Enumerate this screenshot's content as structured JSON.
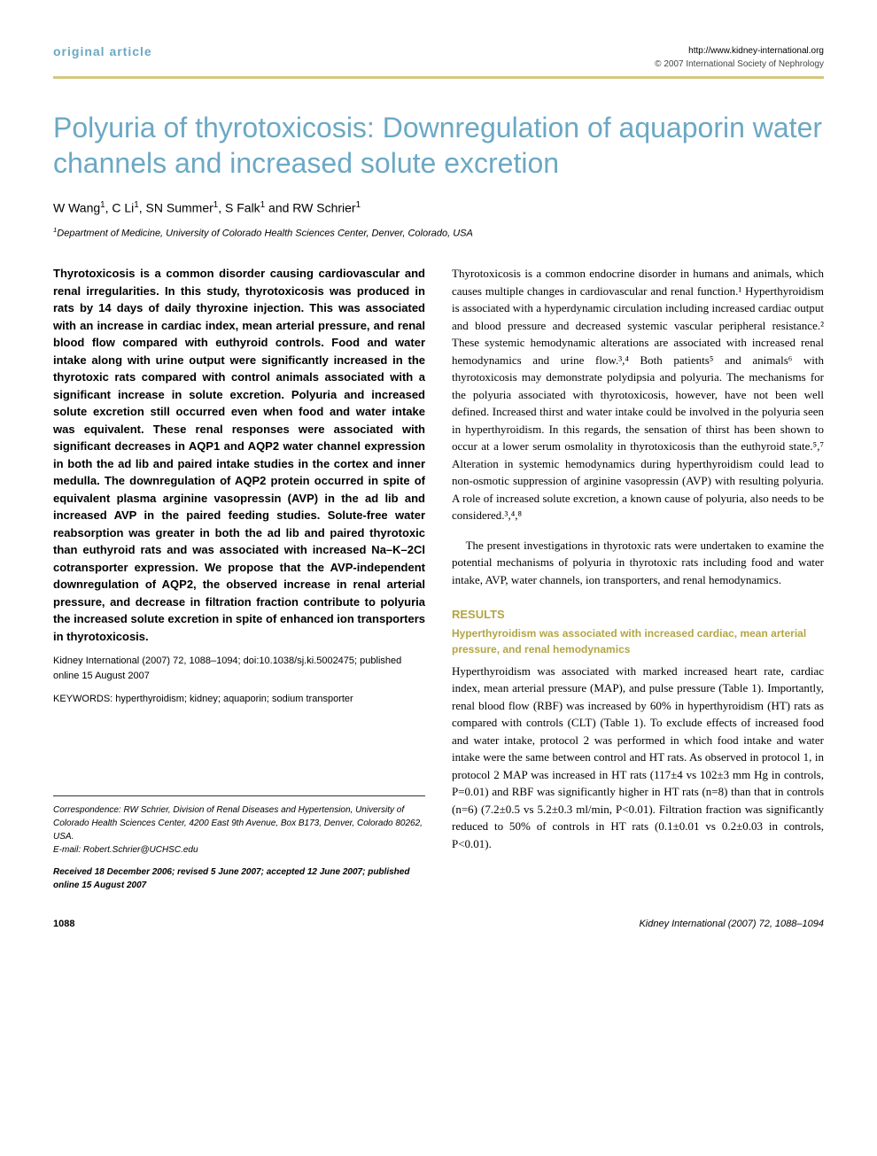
{
  "header": {
    "article_type": "original article",
    "url": "http://www.kidney-international.org",
    "copyright": "© 2007 International Society of Nephrology"
  },
  "title": "Polyuria of thyrotoxicosis: Downregulation of aquaporin water channels and increased solute excretion",
  "authors_html": "W Wang<span class='sup'>1</span>, C Li<span class='sup'>1</span>, SN Summer<span class='sup'>1</span>, S Falk<span class='sup'>1</span> and RW Schrier<span class='sup'>1</span>",
  "affiliation_html": "<span class='sup'>1</span>Department of Medicine, University of Colorado Health Sciences Center, Denver, Colorado, USA",
  "abstract": "Thyrotoxicosis is a common disorder causing cardiovascular and renal irregularities. In this study, thyrotoxicosis was produced in rats by 14 days of daily thyroxine injection. This was associated with an increase in cardiac index, mean arterial pressure, and renal blood flow compared with euthyroid controls. Food and water intake along with urine output were significantly increased in the thyrotoxic rats compared with control animals associated with a significant increase in solute excretion. Polyuria and increased solute excretion still occurred even when food and water intake was equivalent. These renal responses were associated with significant decreases in AQP1 and AQP2 water channel expression in both the ad lib and paired intake studies in the cortex and inner medulla. The downregulation of AQP2 protein occurred in spite of equivalent plasma arginine vasopressin (AVP) in the ad lib and increased AVP in the paired feeding studies. Solute-free water reabsorption was greater in both the ad lib and paired thyrotoxic than euthyroid rats and was associated with increased Na–K–2Cl cotransporter expression. We propose that the AVP-independent downregulation of AQP2, the observed increase in renal arterial pressure, and decrease in filtration fraction contribute to polyuria the increased solute excretion in spite of enhanced ion transporters in thyrotoxicosis.",
  "citation": "Kidney International (2007) 72, 1088–1094; doi:10.1038/sj.ki.5002475; published online 15 August 2007",
  "keywords": "KEYWORDS: hyperthyroidism; kidney; aquaporin; sodium transporter",
  "intro_p1": "Thyrotoxicosis is a common endocrine disorder in humans and animals, which causes multiple changes in cardiovascular and renal function.¹ Hyperthyroidism is associated with a hyperdynamic circulation including increased cardiac output and blood pressure and decreased systemic vascular peripheral resistance.² These systemic hemodynamic alterations are associated with increased renal hemodynamics and urine flow.³,⁴ Both patients⁵ and animals⁶ with thyrotoxicosis may demonstrate polydipsia and polyuria. The mechanisms for the polyuria associated with thyrotoxicosis, however, have not been well defined. Increased thirst and water intake could be involved in the polyuria seen in hyperthyroidism. In this regards, the sensation of thirst has been shown to occur at a lower serum osmolality in thyrotoxicosis than the euthyroid state.⁵,⁷ Alteration in systemic hemodynamics during hyperthyroidism could lead to non-osmotic suppression of arginine vasopressin (AVP) with resulting polyuria. A role of increased solute excretion, a known cause of polyuria, also needs to be considered.³,⁴,⁸",
  "intro_p2": "The present investigations in thyrotoxic rats were undertaken to examine the potential mechanisms of polyuria in thyrotoxic rats including food and water intake, AVP, water channels, ion transporters, and renal hemodynamics.",
  "results_head": "RESULTS",
  "results_sub": "Hyperthyroidism was associated with increased cardiac, mean arterial pressure, and renal hemodynamics",
  "results_p1": "Hyperthyroidism was associated with marked increased heart rate, cardiac index, mean arterial pressure (MAP), and pulse pressure (Table 1). Importantly, renal blood flow (RBF) was increased by 60% in hyperthyroidism (HT) rats as compared with controls (CLT) (Table 1). To exclude effects of increased food and water intake, protocol 2 was performed in which food intake and water intake were the same between control and HT rats. As observed in protocol 1, in protocol 2 MAP was increased in HT rats (117±4 vs 102±3 mm Hg in controls, P=0.01) and RBF was significantly higher in HT rats (n=8) than that in controls (n=6) (7.2±0.5 vs 5.2±0.3 ml/min, P<0.01). Filtration fraction was significantly reduced to 50% of controls in HT rats (0.1±0.01 vs 0.2±0.03 in controls, P<0.01).",
  "correspondence": "Correspondence: RW Schrier, Division of Renal Diseases and Hypertension, University of Colorado Health Sciences Center, 4200 East 9th Avenue, Box B173, Denver, Colorado 80262, USA.",
  "email": "E-mail: Robert.Schrier@UCHSC.edu",
  "received": "Received 18 December 2006; revised 5 June 2007; accepted 12 June 2007; published online 15 August 2007",
  "footer": {
    "page": "1088",
    "journal": "Kidney International (2007) 72, 1088–1094"
  },
  "colors": {
    "accent_blue": "#6ba8c4",
    "accent_olive": "#b3a545",
    "rule_gold": "#d4c77d"
  }
}
